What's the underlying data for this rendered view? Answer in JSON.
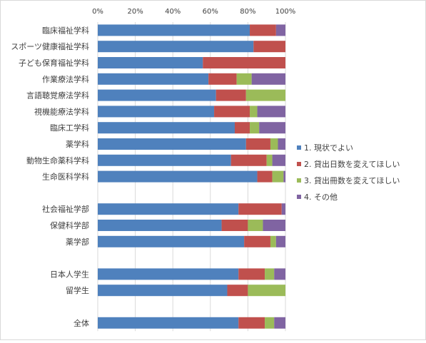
{
  "chart_data": {
    "type": "bar",
    "orientation": "horizontal",
    "stacked": "percent",
    "xlim": [
      0,
      100
    ],
    "x_ticks": [
      "0%",
      "20%",
      "40%",
      "60%",
      "80%",
      "100%"
    ],
    "x_axis_position": "top",
    "grid": true,
    "legend_position": "right",
    "categories": [
      "臨床福祉学科",
      "スポーツ健康福祉学科",
      "子ども保育福祉学科",
      "作業療法学科",
      "言語聴覚療法学科",
      "視機能療法学科",
      "臨床工学科",
      "薬学科",
      "動物生命薬科学科",
      "生命医科学科",
      "",
      "社会福祉学部",
      "保健科学部",
      "薬学部",
      "",
      "日本人学生",
      "留学生",
      "",
      "全体"
    ],
    "series": [
      {
        "name": "1. 現状でよい",
        "color": "#4f81bd",
        "values": [
          81,
          83,
          56,
          59,
          63,
          62,
          73,
          79,
          71,
          85,
          null,
          75,
          66,
          78,
          null,
          75,
          69,
          null,
          75
        ]
      },
      {
        "name": "2. 貸出日数を変えてほしい",
        "color": "#c0504d",
        "values": [
          14,
          17,
          44,
          15,
          16,
          19,
          8,
          13,
          19,
          8,
          null,
          23,
          14,
          14,
          null,
          14,
          11,
          null,
          14
        ]
      },
      {
        "name": "3. 貸出冊数を変えてほしい",
        "color": "#9bbb59",
        "values": [
          0,
          0,
          0,
          8,
          21,
          4,
          5,
          4,
          3,
          6,
          null,
          0,
          8,
          3,
          null,
          5,
          20,
          null,
          5
        ]
      },
      {
        "name": "4. その他",
        "color": "#8064a2",
        "values": [
          5,
          0,
          0,
          18,
          0,
          15,
          14,
          4,
          7,
          1,
          null,
          2,
          12,
          5,
          null,
          6,
          0,
          null,
          6
        ]
      }
    ]
  }
}
